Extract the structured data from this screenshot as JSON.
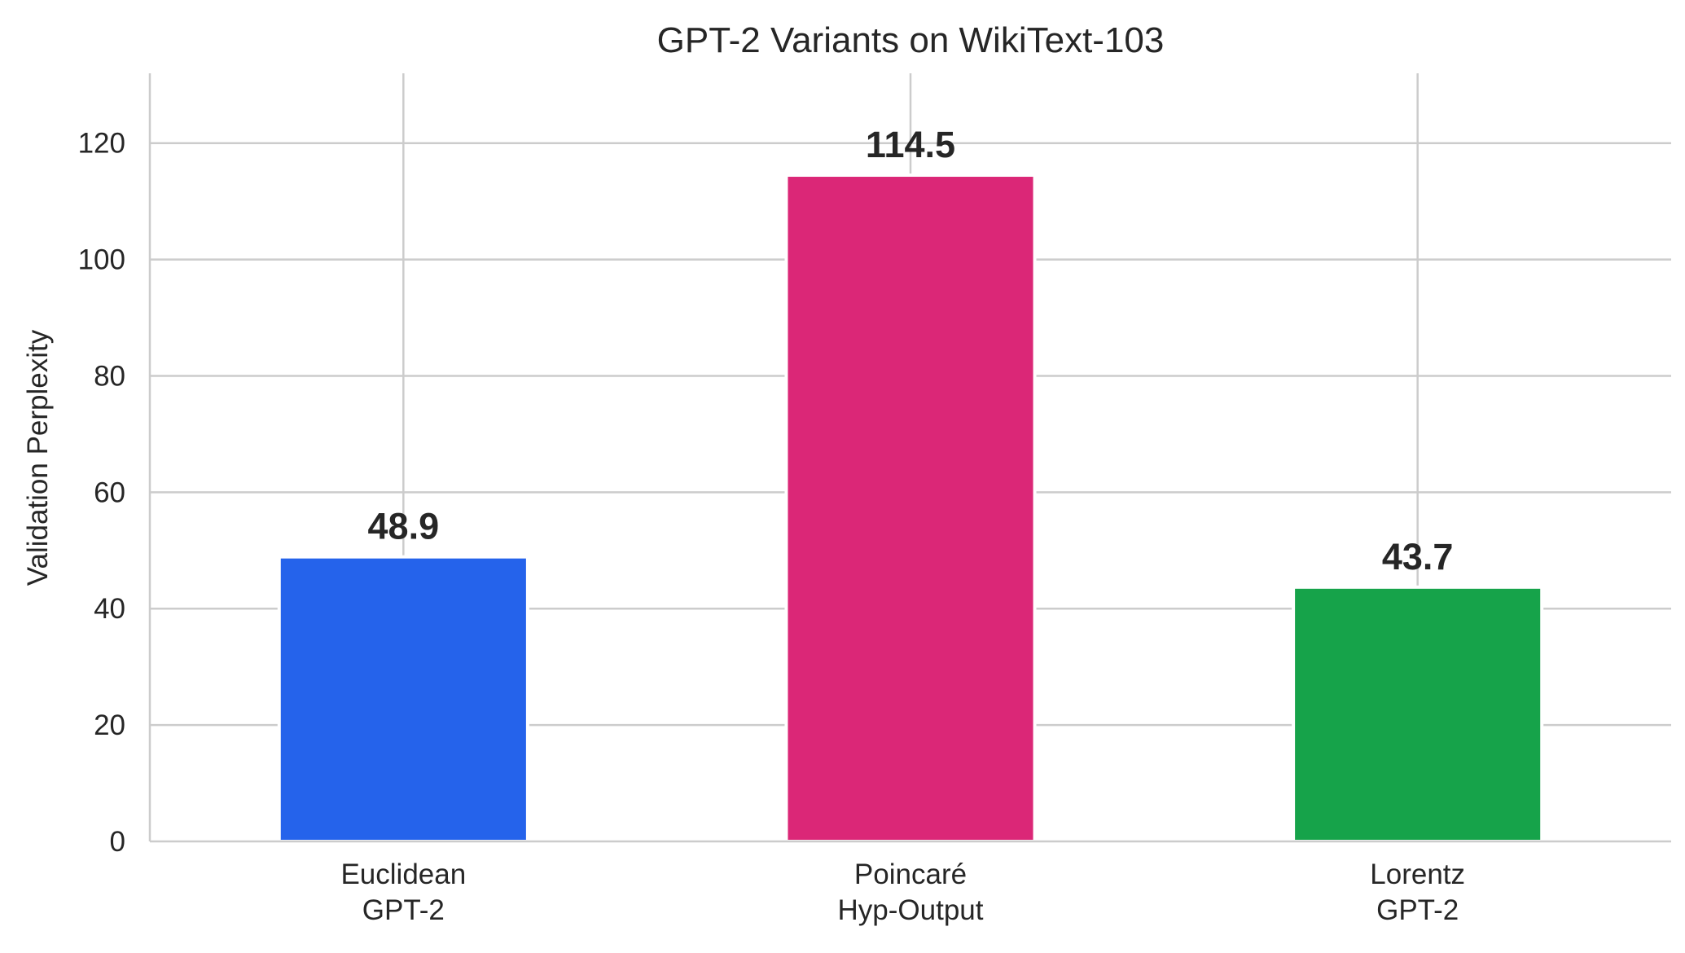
{
  "chart_data": {
    "type": "bar",
    "title": "GPT-2 Variants on WikiText-103",
    "xlabel": "",
    "ylabel": "Validation Perplexity",
    "categories": [
      [
        "Euclidean",
        "GPT-2"
      ],
      [
        "Poincaré",
        "Hyp-Output"
      ],
      [
        "Lorentz",
        "GPT-2"
      ]
    ],
    "values": [
      48.9,
      114.5,
      43.7
    ],
    "value_labels": [
      "48.9",
      "114.5",
      "43.7"
    ],
    "colors": [
      "#2563eb",
      "#db2777",
      "#16a34a"
    ],
    "ylim": [
      0,
      132
    ],
    "yticks": [
      0,
      20,
      40,
      60,
      80,
      100,
      120
    ],
    "grid": true,
    "legend": "none"
  }
}
